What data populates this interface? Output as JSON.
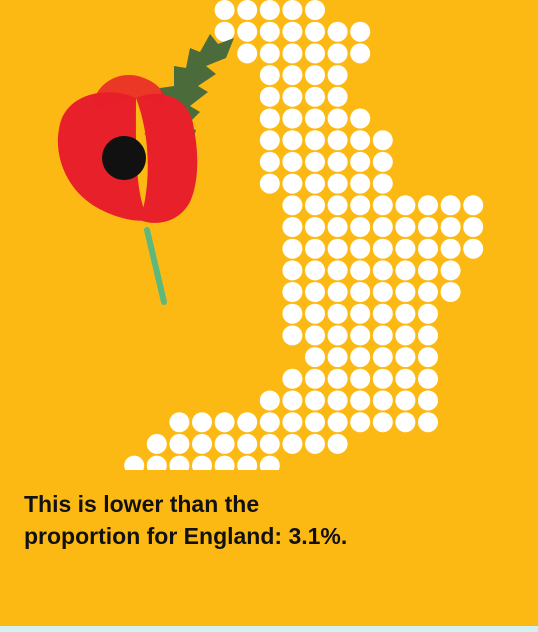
{
  "infographic": {
    "caption_lines": [
      "This is lower than the",
      "proportion for England: 3.1%."
    ],
    "map_icon": "england-dot-map",
    "poppy_icon": "remembrance-poppy-icon",
    "colors": {
      "background": "#FDB913",
      "dots": "#FFFFFF",
      "text": "#111111",
      "poppy_petal": "#E8202A",
      "poppy_center": "#111111",
      "leaf": "#4C6B3A",
      "stem": "#5DB87E",
      "bottom_strip": "#D6F0EE"
    }
  }
}
